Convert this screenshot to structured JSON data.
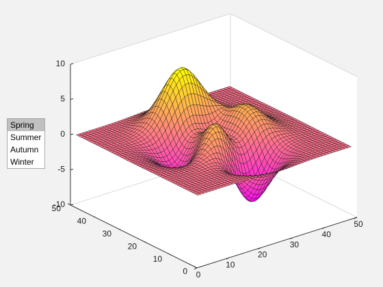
{
  "listbox": {
    "items": [
      "Spring",
      "Summer",
      "Autumn",
      "Winter"
    ],
    "selected_index": 0
  },
  "colors": {
    "figure_background": "#f2f2f2",
    "axes_background": "#ffffff",
    "mesh_edge": "#1a1a1a",
    "colormap": "spring"
  },
  "chart_data": {
    "type": "surface",
    "function": "peaks",
    "grid_size": [
      49,
      49
    ],
    "colormap": "spring",
    "xlim": [
      0,
      50
    ],
    "ylim": [
      0,
      50
    ],
    "zlim": [
      -10,
      10
    ],
    "x_ticks": [
      "0",
      "10",
      "20",
      "30",
      "40",
      "50"
    ],
    "y_ticks": [
      "0",
      "10",
      "20",
      "30",
      "40",
      "50"
    ],
    "z_ticks": [
      "-10",
      "-5",
      "0",
      "5",
      "10"
    ],
    "grid": false,
    "title": "",
    "xlabel": "",
    "ylabel": "",
    "zlabel": ""
  }
}
